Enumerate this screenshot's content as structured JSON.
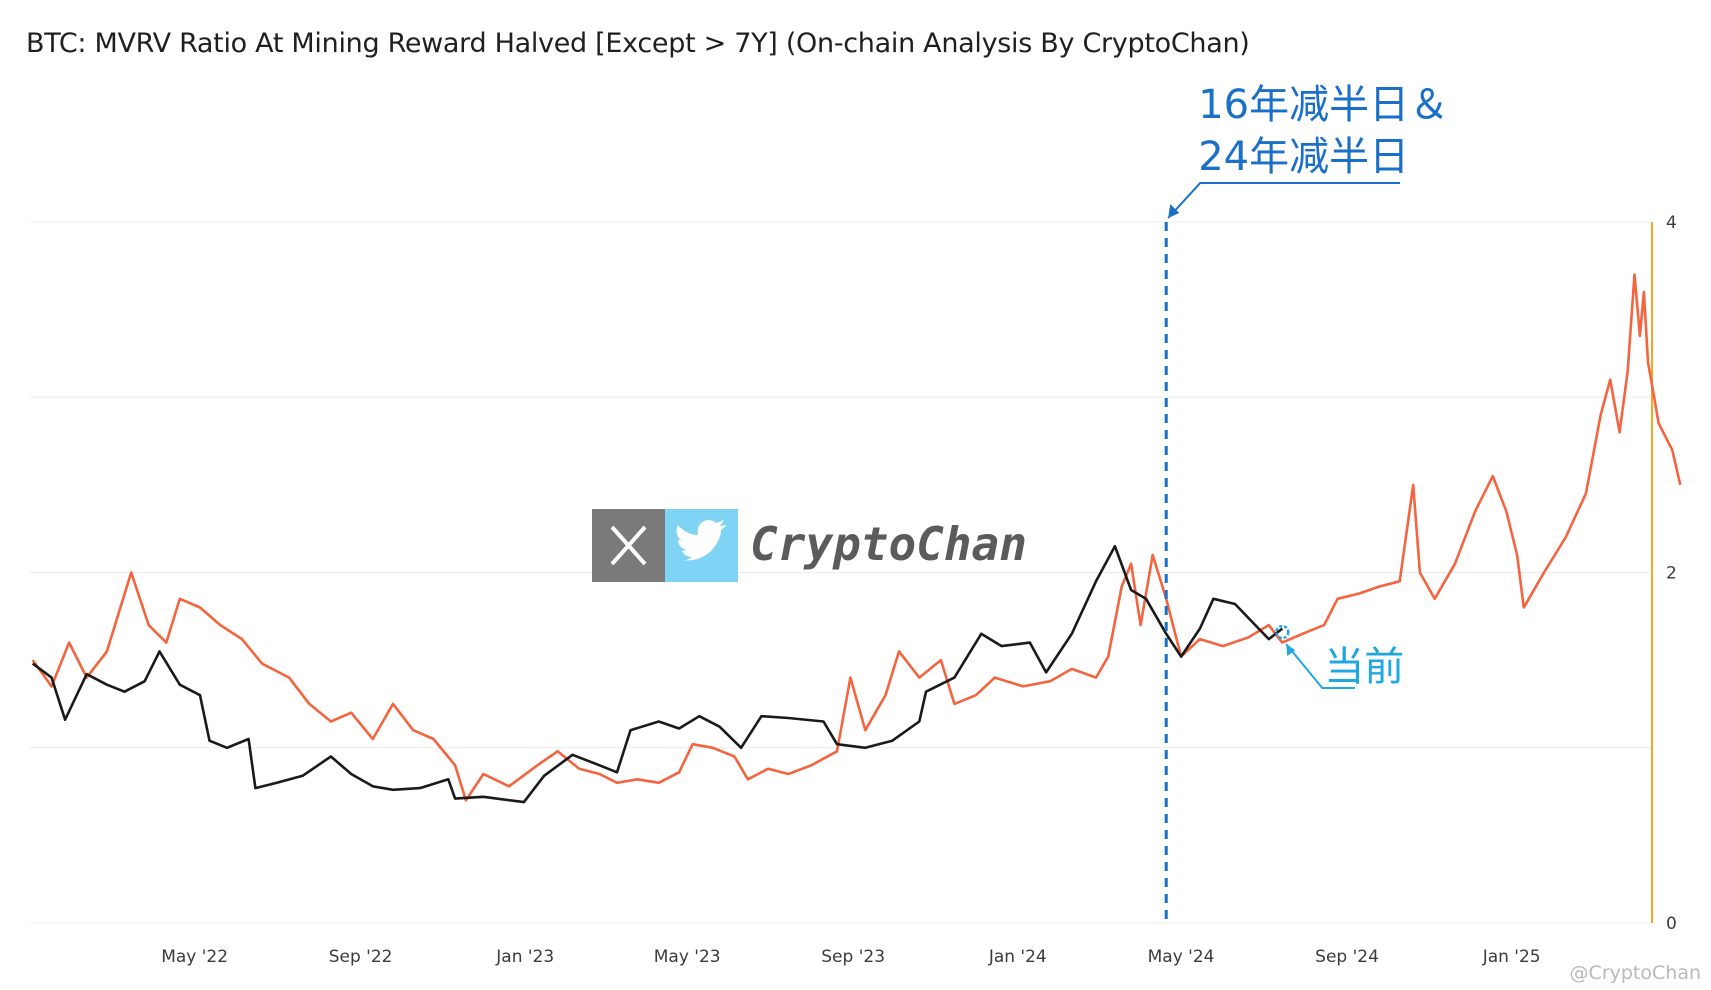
{
  "title": "BTC: MVRV Ratio At Mining Reward Halved [Except > 7Y] (On-chain Analysis By CryptoChan)",
  "annotations": {
    "halving_label_line1": "16年减半日＆",
    "halving_label_line2": "24年减半日",
    "current_label": "当前"
  },
  "watermark": {
    "brand": "CryptoChan",
    "x_icon": "x-logo-icon",
    "twitter_icon": "twitter-bird-icon",
    "footer": "@CryptoChan"
  },
  "colors": {
    "series_2016": "#1a1a1a",
    "series_2024": "#f4643f",
    "halving_line": "#1a6fc9",
    "current_marker": "#1fa7e0",
    "right_axis": "#f5a623",
    "grid": "#ececec"
  },
  "chart_data": {
    "type": "line",
    "x_range": [
      "2021-12-30",
      "2025-04-15"
    ],
    "ylim": [
      0,
      4
    ],
    "y_ticks": [
      "0",
      "2",
      "4"
    ],
    "x_ticks": [
      "May '22",
      "Sep '22",
      "Jan '23",
      "May '23",
      "Sep '23",
      "Jan '24",
      "May '24",
      "Sep '24",
      "Jan '25"
    ],
    "x_tick_dates": [
      "2022-05-01",
      "2022-09-01",
      "2023-01-01",
      "2023-05-01",
      "2023-09-01",
      "2024-01-01",
      "2024-05-01",
      "2024-09-01",
      "2025-01-01"
    ],
    "halving_date": "2024-04-20",
    "current_date": "2024-07-15",
    "series": [
      {
        "color": "#1a1a1a",
        "points": [
          [
            "2022-01-01",
            1.48
          ],
          [
            "2022-01-15",
            1.4
          ],
          [
            "2022-01-25",
            1.16
          ],
          [
            "2022-02-10",
            1.42
          ],
          [
            "2022-02-25",
            1.36
          ],
          [
            "2022-03-10",
            1.32
          ],
          [
            "2022-03-25",
            1.38
          ],
          [
            "2022-04-05",
            1.55
          ],
          [
            "2022-04-20",
            1.36
          ],
          [
            "2022-05-05",
            1.3
          ],
          [
            "2022-05-12",
            1.04
          ],
          [
            "2022-05-25",
            1.0
          ],
          [
            "2022-06-10",
            1.05
          ],
          [
            "2022-06-15",
            0.77
          ],
          [
            "2022-07-01",
            0.8
          ],
          [
            "2022-07-20",
            0.84
          ],
          [
            "2022-08-10",
            0.95
          ],
          [
            "2022-08-25",
            0.85
          ],
          [
            "2022-09-10",
            0.78
          ],
          [
            "2022-09-25",
            0.76
          ],
          [
            "2022-10-15",
            0.77
          ],
          [
            "2022-11-05",
            0.82
          ],
          [
            "2022-11-10",
            0.71
          ],
          [
            "2022-12-01",
            0.72
          ],
          [
            "2022-12-31",
            0.69
          ],
          [
            "2023-01-15",
            0.84
          ],
          [
            "2023-02-05",
            0.96
          ],
          [
            "2023-02-25",
            0.9
          ],
          [
            "2023-03-10",
            0.86
          ],
          [
            "2023-03-20",
            1.1
          ],
          [
            "2023-04-10",
            1.15
          ],
          [
            "2023-04-25",
            1.11
          ],
          [
            "2023-05-10",
            1.18
          ],
          [
            "2023-05-25",
            1.12
          ],
          [
            "2023-06-10",
            1.0
          ],
          [
            "2023-06-25",
            1.18
          ],
          [
            "2023-07-15",
            1.17
          ],
          [
            "2023-08-10",
            1.15
          ],
          [
            "2023-08-20",
            1.02
          ],
          [
            "2023-09-10",
            1.0
          ],
          [
            "2023-09-30",
            1.04
          ],
          [
            "2023-10-20",
            1.15
          ],
          [
            "2023-10-25",
            1.32
          ],
          [
            "2023-11-15",
            1.4
          ],
          [
            "2023-12-05",
            1.65
          ],
          [
            "2023-12-20",
            1.58
          ],
          [
            "2024-01-10",
            1.6
          ],
          [
            "2024-01-22",
            1.43
          ],
          [
            "2024-02-10",
            1.65
          ],
          [
            "2024-02-28",
            1.95
          ],
          [
            "2024-03-13",
            2.15
          ],
          [
            "2024-03-25",
            1.9
          ],
          [
            "2024-04-05",
            1.85
          ],
          [
            "2024-04-20",
            1.65
          ],
          [
            "2024-05-01",
            1.52
          ],
          [
            "2024-05-15",
            1.68
          ],
          [
            "2024-05-25",
            1.85
          ],
          [
            "2024-06-10",
            1.82
          ],
          [
            "2024-06-25",
            1.7
          ],
          [
            "2024-07-05",
            1.62
          ],
          [
            "2024-07-15",
            1.68
          ]
        ]
      },
      {
        "color": "#f4643f",
        "points": [
          [
            "2022-01-01",
            1.5
          ],
          [
            "2022-01-15",
            1.35
          ],
          [
            "2022-01-28",
            1.6
          ],
          [
            "2022-02-10",
            1.4
          ],
          [
            "2022-02-25",
            1.55
          ],
          [
            "2022-03-05",
            1.75
          ],
          [
            "2022-03-15",
            2.0
          ],
          [
            "2022-03-28",
            1.7
          ],
          [
            "2022-04-10",
            1.6
          ],
          [
            "2022-04-20",
            1.85
          ],
          [
            "2022-05-05",
            1.8
          ],
          [
            "2022-05-20",
            1.7
          ],
          [
            "2022-06-05",
            1.62
          ],
          [
            "2022-06-20",
            1.48
          ],
          [
            "2022-07-10",
            1.4
          ],
          [
            "2022-07-25",
            1.25
          ],
          [
            "2022-08-10",
            1.15
          ],
          [
            "2022-08-25",
            1.2
          ],
          [
            "2022-09-10",
            1.05
          ],
          [
            "2022-09-25",
            1.25
          ],
          [
            "2022-10-10",
            1.1
          ],
          [
            "2022-10-25",
            1.05
          ],
          [
            "2022-11-10",
            0.9
          ],
          [
            "2022-11-18",
            0.7
          ],
          [
            "2022-12-01",
            0.85
          ],
          [
            "2022-12-20",
            0.78
          ],
          [
            "2023-01-10",
            0.9
          ],
          [
            "2023-01-25",
            0.98
          ],
          [
            "2023-02-10",
            0.88
          ],
          [
            "2023-02-25",
            0.85
          ],
          [
            "2023-03-10",
            0.8
          ],
          [
            "2023-03-25",
            0.82
          ],
          [
            "2023-04-10",
            0.8
          ],
          [
            "2023-04-25",
            0.86
          ],
          [
            "2023-05-05",
            1.02
          ],
          [
            "2023-05-20",
            1.0
          ],
          [
            "2023-06-05",
            0.95
          ],
          [
            "2023-06-15",
            0.82
          ],
          [
            "2023-06-30",
            0.88
          ],
          [
            "2023-07-15",
            0.85
          ],
          [
            "2023-08-01",
            0.9
          ],
          [
            "2023-08-20",
            0.98
          ],
          [
            "2023-08-30",
            1.4
          ],
          [
            "2023-09-10",
            1.1
          ],
          [
            "2023-09-25",
            1.3
          ],
          [
            "2023-10-05",
            1.55
          ],
          [
            "2023-10-20",
            1.4
          ],
          [
            "2023-11-05",
            1.5
          ],
          [
            "2023-11-15",
            1.25
          ],
          [
            "2023-12-01",
            1.3
          ],
          [
            "2023-12-15",
            1.4
          ],
          [
            "2024-01-05",
            1.35
          ],
          [
            "2024-01-25",
            1.38
          ],
          [
            "2024-02-10",
            1.45
          ],
          [
            "2024-02-28",
            1.4
          ],
          [
            "2024-03-08",
            1.52
          ],
          [
            "2024-03-18",
            1.92
          ],
          [
            "2024-03-25",
            2.05
          ],
          [
            "2024-04-01",
            1.7
          ],
          [
            "2024-04-10",
            2.1
          ],
          [
            "2024-04-20",
            1.85
          ],
          [
            "2024-05-01",
            1.52
          ],
          [
            "2024-05-15",
            1.62
          ],
          [
            "2024-06-01",
            1.58
          ],
          [
            "2024-06-20",
            1.63
          ],
          [
            "2024-07-05",
            1.7
          ],
          [
            "2024-07-15",
            1.6
          ],
          [
            "2024-07-30",
            1.65
          ],
          [
            "2024-08-15",
            1.7
          ],
          [
            "2024-08-25",
            1.85
          ],
          [
            "2024-09-10",
            1.88
          ],
          [
            "2024-09-25",
            1.92
          ],
          [
            "2024-10-10",
            1.95
          ],
          [
            "2024-10-20",
            2.5
          ],
          [
            "2024-10-25",
            2.0
          ],
          [
            "2024-11-05",
            1.85
          ],
          [
            "2024-11-20",
            2.05
          ],
          [
            "2024-12-05",
            2.35
          ],
          [
            "2024-12-18",
            2.55
          ],
          [
            "2024-12-28",
            2.35
          ],
          [
            "2025-01-05",
            2.1
          ],
          [
            "2025-01-10",
            1.8
          ],
          [
            "2025-01-25",
            2.0
          ],
          [
            "2025-02-10",
            2.2
          ],
          [
            "2025-02-25",
            2.45
          ],
          [
            "2025-03-08",
            2.9
          ],
          [
            "2025-03-15",
            3.1
          ],
          [
            "2025-03-22",
            2.8
          ],
          [
            "2025-03-28",
            3.15
          ],
          [
            "2025-04-02",
            3.7
          ],
          [
            "2025-04-06",
            3.35
          ],
          [
            "2025-04-09",
            3.6
          ],
          [
            "2025-04-12",
            3.2
          ],
          [
            "2025-04-20",
            2.85
          ],
          [
            "2025-04-30",
            2.7
          ],
          [
            "2025-05-06",
            2.5
          ]
        ]
      }
    ]
  }
}
